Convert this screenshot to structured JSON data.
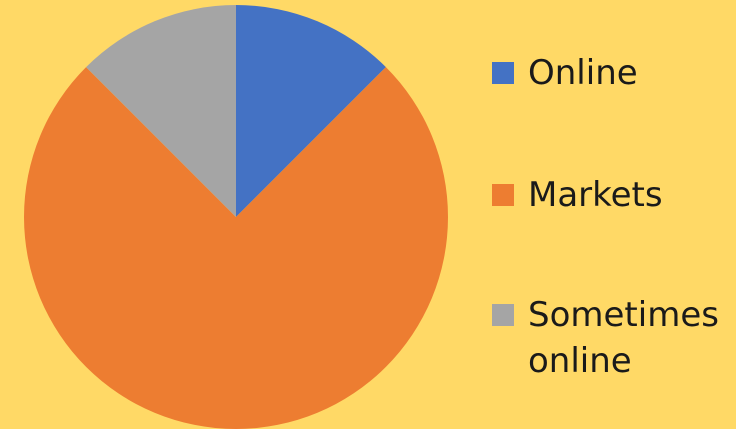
{
  "chart_data": {
    "type": "pie",
    "title": "",
    "slices": [
      {
        "label": "Online",
        "value": 12.5,
        "color": "#4472C4"
      },
      {
        "label": "Markets",
        "value": 75,
        "color": "#ED7D31"
      },
      {
        "label": "Sometimes online",
        "value": 12.5,
        "color": "#A5A5A5"
      }
    ],
    "start_angle_deg": 0,
    "direction": "clockwise",
    "legend": "right",
    "background": "#FFD966"
  }
}
